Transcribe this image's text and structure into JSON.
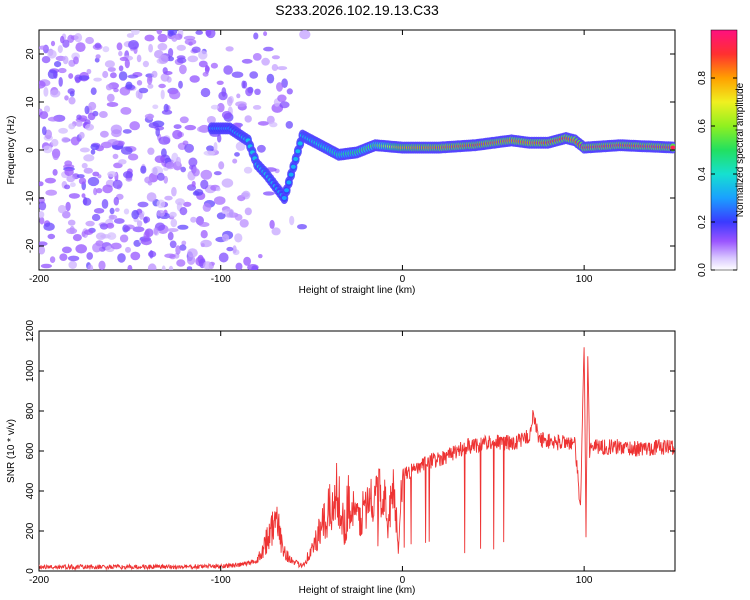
{
  "title": "S233.2026.102.19.13.C33",
  "chart_data": [
    {
      "type": "heatmap",
      "name": "spectrogram",
      "xlabel": "Height of straight line (km)",
      "ylabel": "Frequency (Hz)",
      "xlim": [
        -200,
        150
      ],
      "ylim": [
        -25,
        25
      ],
      "xticks": [
        -200,
        -100,
        0,
        100
      ],
      "yticks": [
        -20,
        -10,
        0,
        10,
        20
      ],
      "colorbar": {
        "label": "Normalized spectral amplitude",
        "range": [
          0,
          1
        ],
        "ticks": [
          0.0,
          0.2,
          0.4,
          0.6,
          0.8
        ],
        "tick_labels": [
          "0.0",
          "0.2",
          "0.4",
          "0.6",
          "0.8"
        ]
      },
      "ridge": [
        {
          "x": -105,
          "y": 4.5,
          "amp": 0.3
        },
        {
          "x": -95,
          "y": 4.5,
          "amp": 0.3
        },
        {
          "x": -85,
          "y": 2,
          "amp": 0.35
        },
        {
          "x": -80,
          "y": -3,
          "amp": 0.35
        },
        {
          "x": -75,
          "y": -5,
          "amp": 0.35
        },
        {
          "x": -65,
          "y": -10,
          "amp": 0.3
        },
        {
          "x": -55,
          "y": 3,
          "amp": 0.35
        },
        {
          "x": -45,
          "y": 1,
          "amp": 0.4
        },
        {
          "x": -35,
          "y": -1,
          "amp": 0.45
        },
        {
          "x": -25,
          "y": -0.5,
          "amp": 0.5
        },
        {
          "x": -15,
          "y": 1,
          "amp": 0.55
        },
        {
          "x": 0,
          "y": 0.5,
          "amp": 0.8
        },
        {
          "x": 20,
          "y": 0.5,
          "amp": 0.85
        },
        {
          "x": 40,
          "y": 1,
          "amp": 0.9
        },
        {
          "x": 60,
          "y": 2,
          "amp": 0.85
        },
        {
          "x": 70,
          "y": 1.5,
          "amp": 0.85
        },
        {
          "x": 80,
          "y": 1.5,
          "amp": 0.9
        },
        {
          "x": 90,
          "y": 2.5,
          "amp": 0.9
        },
        {
          "x": 95,
          "y": 2,
          "amp": 0.85
        },
        {
          "x": 100,
          "y": 0.5,
          "amp": 0.95
        },
        {
          "x": 120,
          "y": 1,
          "amp": 0.95
        },
        {
          "x": 150,
          "y": 0.5,
          "amp": 0.95
        }
      ]
    },
    {
      "type": "line",
      "name": "snr",
      "xlabel": "Height of straight line (km)",
      "ylabel": "SNR (10 * v/v)",
      "xlim": [
        -200,
        150
      ],
      "ylim": [
        0,
        1200
      ],
      "xticks": [
        -200,
        -100,
        0,
        100
      ],
      "yticks": [
        0,
        200,
        400,
        600,
        800,
        1000,
        1200
      ],
      "color": "#ee3333",
      "series": [
        {
          "name": "SNR",
          "x": [
            -200,
            -180,
            -160,
            -140,
            -120,
            -100,
            -90,
            -80,
            -75,
            -70,
            -68,
            -65,
            -60,
            -55,
            -50,
            -45,
            -40,
            -35,
            -32,
            -30,
            -25,
            -20,
            -15,
            -10,
            -8,
            -5,
            -2,
            0,
            5,
            10,
            15,
            20,
            25,
            30,
            35,
            40,
            45,
            50,
            55,
            60,
            65,
            70,
            72,
            75,
            80,
            85,
            90,
            95,
            98,
            100,
            101,
            102,
            103,
            105,
            110,
            120,
            130,
            140,
            150
          ],
          "y": [
            20,
            20,
            20,
            20,
            20,
            25,
            30,
            50,
            150,
            250,
            200,
            100,
            40,
            30,
            100,
            200,
            300,
            400,
            200,
            350,
            250,
            320,
            380,
            400,
            200,
            450,
            100,
            480,
            500,
            520,
            550,
            560,
            580,
            600,
            620,
            630,
            640,
            650,
            640,
            640,
            650,
            680,
            780,
            660,
            650,
            640,
            650,
            630,
            300,
            1150,
            200,
            1100,
            600,
            630,
            620,
            620,
            610,
            620,
            620
          ]
        }
      ]
    }
  ]
}
